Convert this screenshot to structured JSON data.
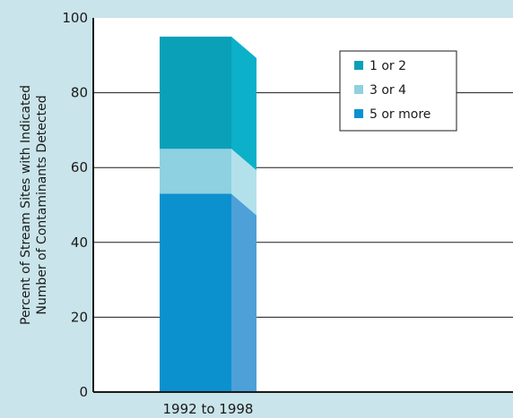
{
  "chart_data": {
    "type": "bar",
    "categories": [
      "1992 to 1998"
    ],
    "series": [
      {
        "name": "5 or more",
        "values": [
          53
        ],
        "color": "#0c91cf",
        "side_color": "#4ea0d9"
      },
      {
        "name": "3 or 4",
        "values": [
          12
        ],
        "color": "#8ed1e0",
        "side_color": "#b2e1eb"
      },
      {
        "name": "1 or 2",
        "values": [
          30
        ],
        "color": "#0aa0b8",
        "side_color": "#0cb0c9"
      }
    ],
    "legend_order": [
      "1 or 2",
      "3 or 4",
      "5 or more"
    ],
    "title": "",
    "xlabel": "",
    "ylabel": [
      "Percent of Stream Sites with Indicated",
      "Number of Contaminants Detected"
    ],
    "ylim": [
      0,
      100
    ],
    "yticks": [
      0,
      20,
      40,
      60,
      80,
      100
    ],
    "grid": true,
    "legend_position": "top-right"
  }
}
